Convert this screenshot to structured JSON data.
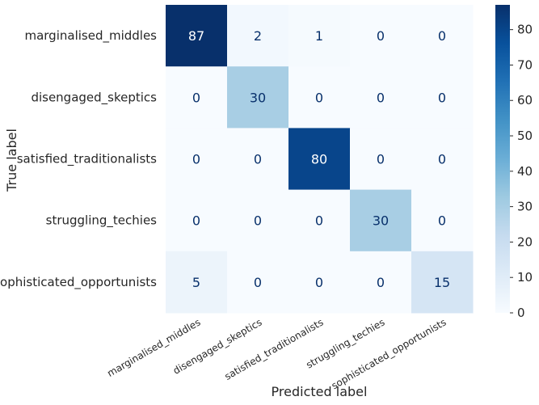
{
  "chart_data": {
    "type": "heatmap",
    "title": "",
    "xlabel": "Predicted label",
    "ylabel": "True label",
    "rows": [
      "marginalised_middles",
      "disengaged_skeptics",
      "satisfied_traditionalists",
      "struggling_techies",
      "sophisticated_opportunists"
    ],
    "columns": [
      "marginalised_middles",
      "disengaged_skeptics",
      "satisfied_traditionalists",
      "struggling_techies",
      "sophisticated_opportunists"
    ],
    "values": [
      [
        87,
        2,
        1,
        0,
        0
      ],
      [
        0,
        30,
        0,
        0,
        0
      ],
      [
        0,
        0,
        80,
        0,
        0
      ],
      [
        0,
        0,
        0,
        30,
        0
      ],
      [
        5,
        0,
        0,
        0,
        15
      ]
    ],
    "colorbar": {
      "min": 0,
      "max": 87,
      "ticks": [
        0,
        10,
        20,
        30,
        40,
        50,
        60,
        70,
        80
      ]
    },
    "colormap": "Blues",
    "grid": false
  }
}
